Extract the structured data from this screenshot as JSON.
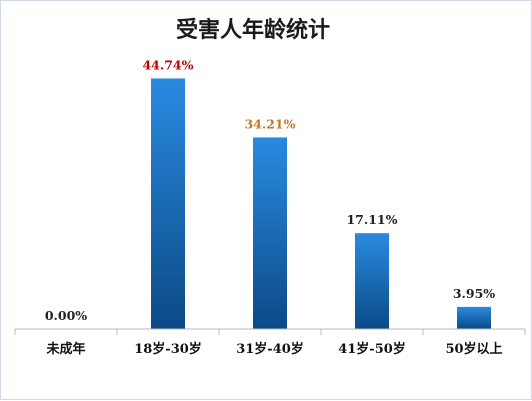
{
  "chart_data": {
    "type": "bar",
    "title": "受害人年龄统计",
    "categories": [
      "未成年",
      "18岁-30岁",
      "31岁-40岁",
      "41岁-50岁",
      "50岁以上"
    ],
    "values": [
      0.0,
      44.74,
      34.21,
      17.11,
      3.95
    ],
    "value_labels": [
      "0.00%",
      "44.74%",
      "34.21%",
      "17.11%",
      "3.95%"
    ],
    "value_label_colors": [
      "#222222",
      "#c00000",
      "#c07a20",
      "#222222",
      "#222222"
    ],
    "ylim": [
      0,
      50
    ],
    "grid": false,
    "legend": "none",
    "bar_color_top": "#2a8ae0",
    "bar_color_bottom": "#0b4a86"
  }
}
